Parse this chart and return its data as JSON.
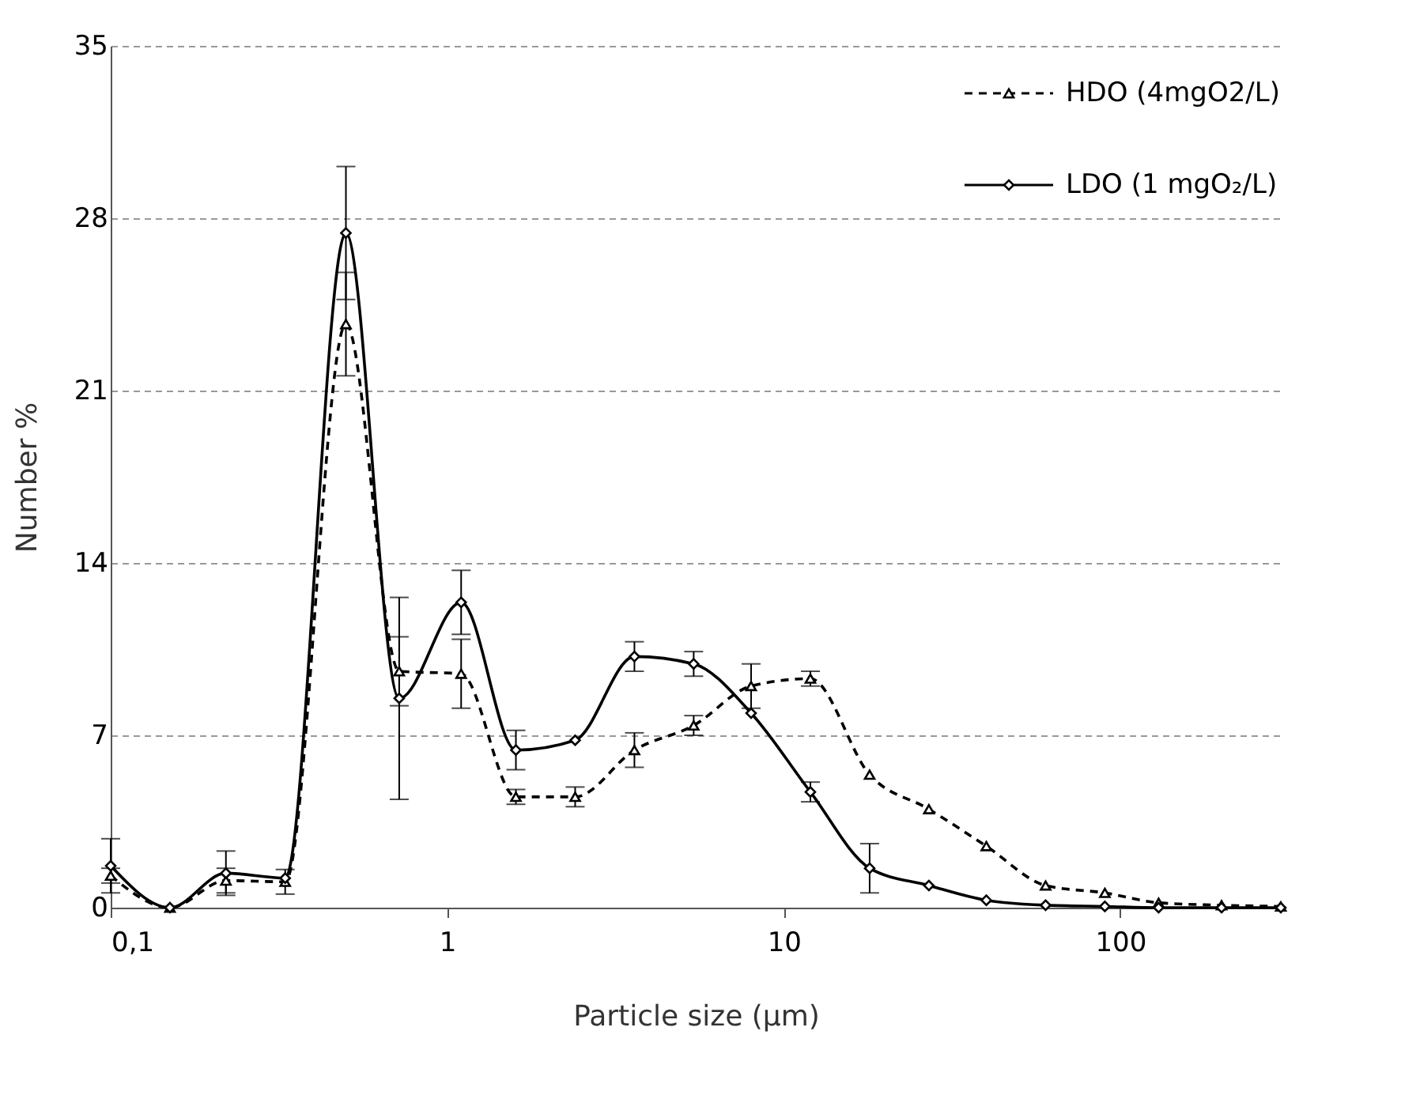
{
  "chart_data": {
    "type": "line",
    "xlabel": "Particle size (μm)",
    "ylabel": "Number %",
    "log": "x",
    "xlim": [
      0.1,
      300
    ],
    "xticks": [
      {
        "value": 0.1,
        "label": "0,1"
      },
      1,
      10,
      100
    ],
    "ylim": [
      0,
      35
    ],
    "yticks": [
      0,
      7,
      14,
      21,
      28,
      35
    ],
    "grid": "y",
    "legend": "top right",
    "x": [
      0.1,
      0.15,
      0.22,
      0.33,
      0.5,
      0.72,
      1.1,
      1.6,
      2.4,
      3.6,
      5.4,
      8,
      12,
      18,
      27,
      40,
      60,
      90,
      130,
      200,
      300
    ],
    "series": [
      {
        "name": "HDO (4mgO2/L)",
        "color": "#000000",
        "marker": "triangle",
        "line_style": "dashed",
        "values": [
          1.3,
          0,
          1.1,
          1.05,
          23.7,
          9.6,
          9.5,
          4.5,
          4.5,
          6.4,
          7.4,
          9.0,
          9.3,
          5.4,
          4.0,
          2.5,
          0.9,
          0.6,
          0.2,
          0.1,
          0.05
        ],
        "errors": [
          0.3,
          null,
          0.5,
          0.5,
          2.1,
          1.4,
          1.4,
          0.3,
          0.4,
          0.7,
          0.4,
          0.9,
          0.3,
          null,
          null,
          null,
          null,
          null,
          null,
          null,
          null
        ]
      },
      {
        "name": "LDO (1 mgO₂/L)",
        "color": "#000000",
        "marker": "diamond",
        "line_style": "solid",
        "values": [
          1.7,
          0,
          1.4,
          1.2,
          27.4,
          8.5,
          12.4,
          6.4,
          6.8,
          10.2,
          9.9,
          7.9,
          4.7,
          1.6,
          0.9,
          0.3,
          0.1,
          0.05,
          0,
          0,
          0
        ],
        "errors": [
          1.1,
          null,
          0.9,
          null,
          2.7,
          4.1,
          1.3,
          0.8,
          null,
          0.6,
          0.5,
          null,
          0.4,
          1.0,
          null,
          null,
          null,
          null,
          null,
          null,
          null
        ]
      }
    ]
  }
}
